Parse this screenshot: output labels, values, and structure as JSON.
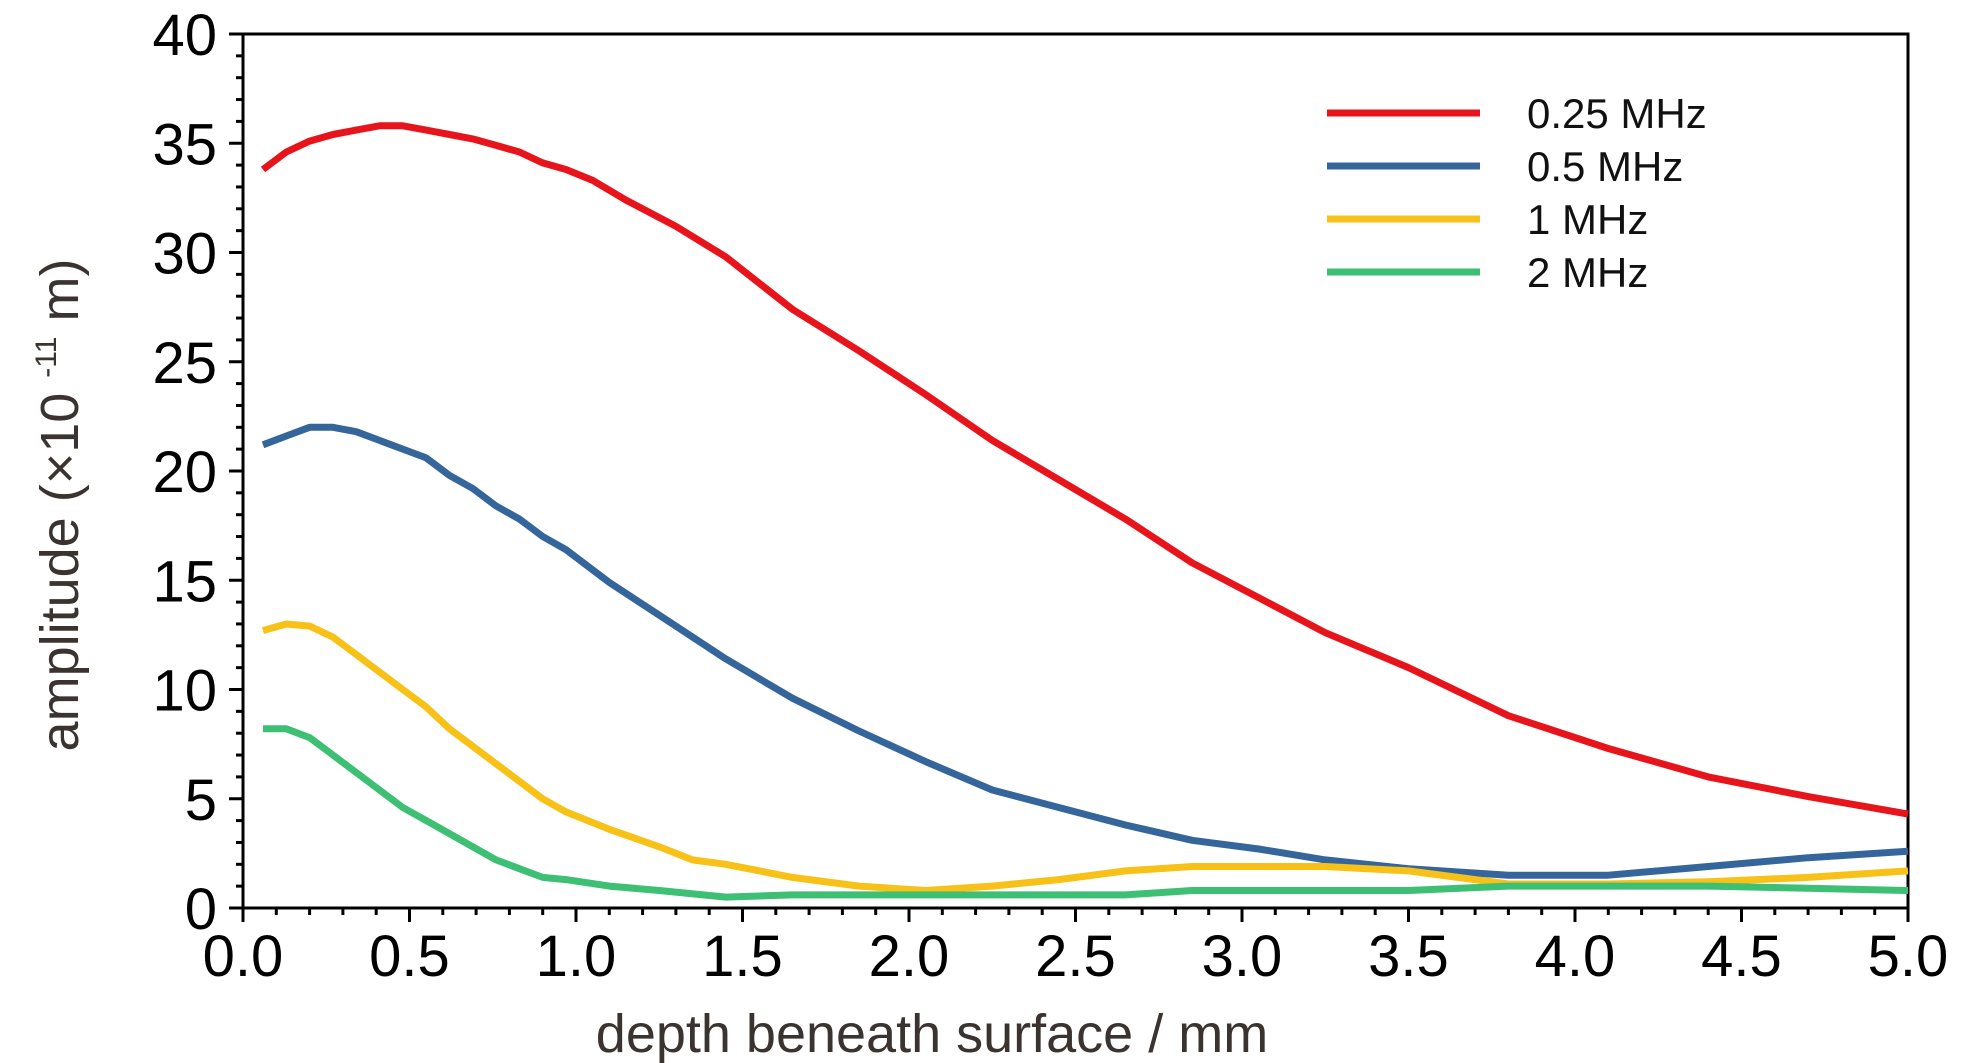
{
  "chart_data": {
    "type": "line",
    "title": "",
    "xlabel": "depth beneath surface / mm",
    "ylabel": {
      "prefix": "amplitude (×10",
      "exponent": "-11",
      "suffix": " m)"
    },
    "xlim": [
      0,
      5
    ],
    "ylim": [
      0,
      40
    ],
    "x_ticks": [
      "0.0",
      "0.5",
      "1.0",
      "1.5",
      "2.0",
      "2.5",
      "3.0",
      "3.5",
      "4.0",
      "4.5",
      "5.0"
    ],
    "y_ticks": [
      "0",
      "5",
      "10",
      "15",
      "20",
      "25",
      "30",
      "35",
      "40"
    ],
    "grid": false,
    "legend_position": "top-right",
    "series": [
      {
        "name": "0.25 MHz",
        "color": "#e8141c",
        "points": [
          [
            0.06,
            33.8
          ],
          [
            0.13,
            34.6
          ],
          [
            0.2,
            35.1
          ],
          [
            0.27,
            35.4
          ],
          [
            0.34,
            35.6
          ],
          [
            0.41,
            35.8
          ],
          [
            0.48,
            35.8
          ],
          [
            0.55,
            35.6
          ],
          [
            0.62,
            35.4
          ],
          [
            0.69,
            35.2
          ],
          [
            0.76,
            34.9
          ],
          [
            0.83,
            34.6
          ],
          [
            0.9,
            34.1
          ],
          [
            0.97,
            33.8
          ],
          [
            1.05,
            33.3
          ],
          [
            1.15,
            32.4
          ],
          [
            1.3,
            31.2
          ],
          [
            1.45,
            29.8
          ],
          [
            1.65,
            27.4
          ],
          [
            1.85,
            25.5
          ],
          [
            2.05,
            23.5
          ],
          [
            2.25,
            21.4
          ],
          [
            2.45,
            19.6
          ],
          [
            2.65,
            17.8
          ],
          [
            2.85,
            15.8
          ],
          [
            3.05,
            14.2
          ],
          [
            3.25,
            12.6
          ],
          [
            3.5,
            11.0
          ],
          [
            3.8,
            8.8
          ],
          [
            4.1,
            7.3
          ],
          [
            4.4,
            6.0
          ],
          [
            4.7,
            5.1
          ],
          [
            5.0,
            4.3
          ]
        ]
      },
      {
        "name": "0.5 MHz",
        "color": "#34659b",
        "points": [
          [
            0.06,
            21.2
          ],
          [
            0.13,
            21.6
          ],
          [
            0.2,
            22.0
          ],
          [
            0.27,
            22.0
          ],
          [
            0.34,
            21.8
          ],
          [
            0.41,
            21.4
          ],
          [
            0.48,
            21.0
          ],
          [
            0.55,
            20.6
          ],
          [
            0.62,
            19.8
          ],
          [
            0.69,
            19.2
          ],
          [
            0.76,
            18.4
          ],
          [
            0.83,
            17.8
          ],
          [
            0.9,
            17.0
          ],
          [
            0.97,
            16.4
          ],
          [
            1.1,
            14.9
          ],
          [
            1.25,
            13.4
          ],
          [
            1.45,
            11.4
          ],
          [
            1.65,
            9.6
          ],
          [
            1.85,
            8.1
          ],
          [
            2.05,
            6.7
          ],
          [
            2.25,
            5.4
          ],
          [
            2.45,
            4.6
          ],
          [
            2.65,
            3.8
          ],
          [
            2.85,
            3.1
          ],
          [
            3.05,
            2.7
          ],
          [
            3.25,
            2.2
          ],
          [
            3.5,
            1.8
          ],
          [
            3.8,
            1.5
          ],
          [
            4.1,
            1.5
          ],
          [
            4.4,
            1.9
          ],
          [
            4.7,
            2.3
          ],
          [
            5.0,
            2.6
          ]
        ]
      },
      {
        "name": "1 MHz",
        "color": "#f7c117",
        "points": [
          [
            0.06,
            12.7
          ],
          [
            0.13,
            13.0
          ],
          [
            0.2,
            12.9
          ],
          [
            0.27,
            12.4
          ],
          [
            0.34,
            11.6
          ],
          [
            0.41,
            10.8
          ],
          [
            0.48,
            10.0
          ],
          [
            0.55,
            9.2
          ],
          [
            0.62,
            8.2
          ],
          [
            0.69,
            7.4
          ],
          [
            0.76,
            6.6
          ],
          [
            0.83,
            5.8
          ],
          [
            0.9,
            5.0
          ],
          [
            0.97,
            4.4
          ],
          [
            1.1,
            3.6
          ],
          [
            1.25,
            2.8
          ],
          [
            1.35,
            2.2
          ],
          [
            1.45,
            2.0
          ],
          [
            1.65,
            1.4
          ],
          [
            1.85,
            1.0
          ],
          [
            2.05,
            0.8
          ],
          [
            2.25,
            1.0
          ],
          [
            2.45,
            1.3
          ],
          [
            2.65,
            1.7
          ],
          [
            2.85,
            1.9
          ],
          [
            3.05,
            1.9
          ],
          [
            3.25,
            1.9
          ],
          [
            3.5,
            1.7
          ],
          [
            3.8,
            1.1
          ],
          [
            4.1,
            1.1
          ],
          [
            4.4,
            1.2
          ],
          [
            4.7,
            1.4
          ],
          [
            5.0,
            1.7
          ]
        ]
      },
      {
        "name": "2 MHz",
        "color": "#3dbf74",
        "points": [
          [
            0.06,
            8.2
          ],
          [
            0.13,
            8.2
          ],
          [
            0.2,
            7.8
          ],
          [
            0.27,
            7.0
          ],
          [
            0.34,
            6.2
          ],
          [
            0.41,
            5.4
          ],
          [
            0.48,
            4.6
          ],
          [
            0.55,
            4.0
          ],
          [
            0.62,
            3.4
          ],
          [
            0.69,
            2.8
          ],
          [
            0.76,
            2.2
          ],
          [
            0.83,
            1.8
          ],
          [
            0.9,
            1.4
          ],
          [
            0.97,
            1.3
          ],
          [
            1.1,
            1.0
          ],
          [
            1.25,
            0.8
          ],
          [
            1.45,
            0.5
          ],
          [
            1.65,
            0.6
          ],
          [
            1.85,
            0.6
          ],
          [
            2.05,
            0.6
          ],
          [
            2.25,
            0.6
          ],
          [
            2.45,
            0.6
          ],
          [
            2.65,
            0.6
          ],
          [
            2.85,
            0.8
          ],
          [
            3.05,
            0.8
          ],
          [
            3.25,
            0.8
          ],
          [
            3.5,
            0.8
          ],
          [
            3.8,
            1.0
          ],
          [
            4.1,
            1.0
          ],
          [
            4.4,
            1.0
          ],
          [
            4.7,
            0.9
          ],
          [
            5.0,
            0.8
          ]
        ]
      }
    ]
  }
}
